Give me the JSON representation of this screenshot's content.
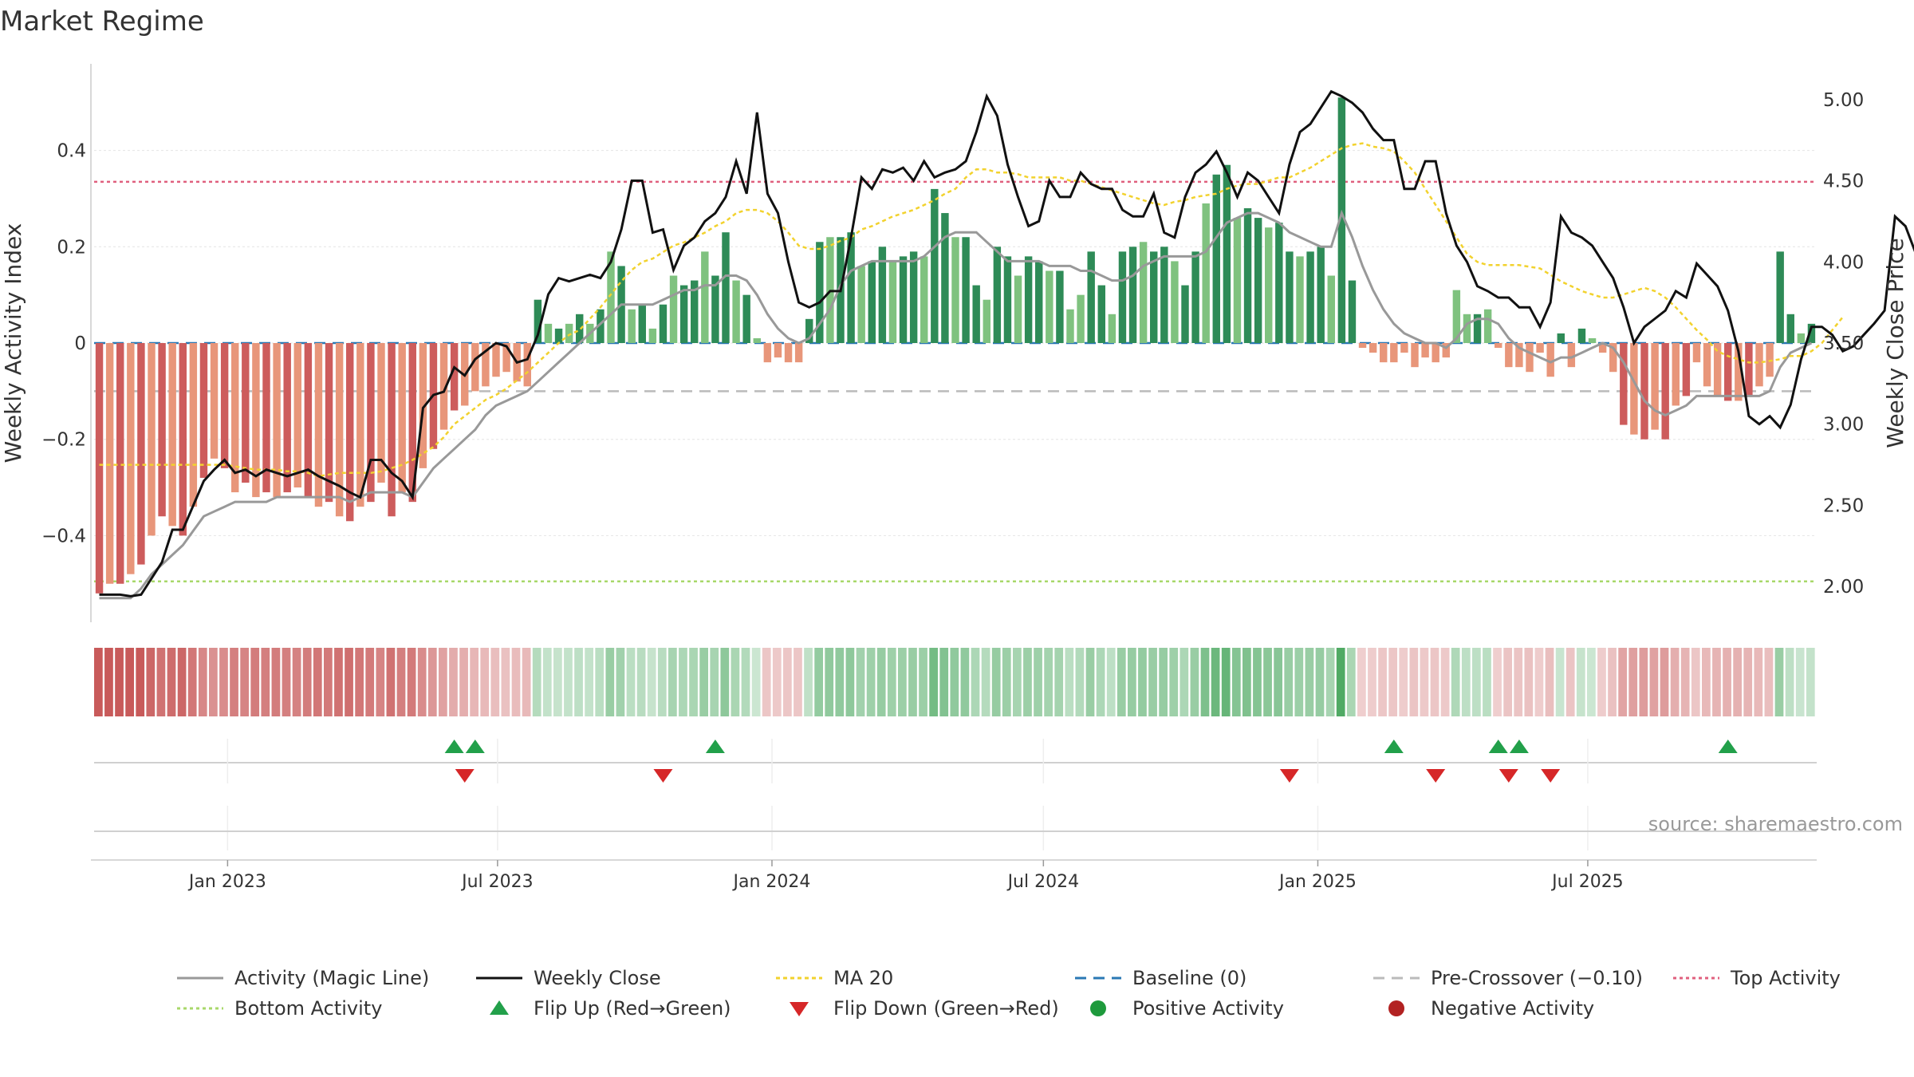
{
  "title": "Market Regime",
  "source": "source: sharemaestro.com",
  "colors": {
    "pos_dark": "#2e8b57",
    "pos_light": "#7fc27f",
    "neg_dark": "#cd5c5c",
    "neg_light": "#e8967a",
    "magic_line": "#999999",
    "close": "#111111",
    "ma20": "#f2d22e",
    "baseline": "#2a78b4",
    "pre_crossover": "#bbbbbb",
    "top_activity": "#e0607e",
    "bottom_activity": "#a8d86a",
    "flip_up": "#22a04a",
    "flip_down": "#d62728",
    "positive_dot": "#1e9a3c",
    "negative_dot": "#b22222"
  },
  "chart_data": {
    "type": "bar",
    "x_start": "2022-10-07",
    "x_step_days": 7,
    "x_ticks": [
      "Jan 2023",
      "Jul 2023",
      "Jan 2024",
      "Jul 2024",
      "Jan 2025",
      "Jul 2025"
    ],
    "x_tick_dates": [
      "2023-01-01",
      "2023-07-01",
      "2024-01-01",
      "2024-07-01",
      "2025-01-01",
      "2025-07-01"
    ],
    "left_axis": {
      "label": "Weekly Activity Index",
      "ylim": [
        -0.58,
        0.58
      ],
      "ticks": [
        0.4,
        0.2,
        0,
        -0.2,
        -0.4
      ],
      "tick_labels": [
        "0.4",
        "0.2",
        "0",
        "−0.2",
        "−0.4"
      ]
    },
    "right_axis": {
      "label": "Weekly Close Price",
      "ylim": [
        1.78,
        5.22
      ],
      "ticks": [
        5.0,
        4.5,
        4.0,
        3.5,
        3.0,
        2.5,
        2.0
      ],
      "tick_labels": [
        "5.00",
        "4.50",
        "4.00",
        "3.50",
        "3.00",
        "2.50",
        "2.00"
      ]
    },
    "activity": [
      -0.52,
      -0.5,
      -0.5,
      -0.48,
      -0.46,
      -0.4,
      -0.36,
      -0.38,
      -0.4,
      -0.34,
      -0.28,
      -0.24,
      -0.26,
      -0.31,
      -0.29,
      -0.32,
      -0.31,
      -0.32,
      -0.31,
      -0.3,
      -0.32,
      -0.34,
      -0.33,
      -0.36,
      -0.37,
      -0.34,
      -0.33,
      -0.29,
      -0.36,
      -0.31,
      -0.33,
      -0.26,
      -0.22,
      -0.18,
      -0.14,
      -0.13,
      -0.1,
      -0.09,
      -0.07,
      -0.06,
      -0.08,
      -0.09,
      0.09,
      0.04,
      0.03,
      0.04,
      0.06,
      0.04,
      0.07,
      0.19,
      0.16,
      0.07,
      0.08,
      0.03,
      0.08,
      0.14,
      0.12,
      0.13,
      0.19,
      0.14,
      0.23,
      0.13,
      0.1,
      0.01,
      -0.04,
      -0.03,
      -0.04,
      -0.04,
      0.05,
      0.21,
      0.22,
      0.22,
      0.23,
      0.16,
      0.17,
      0.2,
      0.17,
      0.18,
      0.19,
      0.18,
      0.32,
      0.27,
      0.22,
      0.22,
      0.12,
      0.09,
      0.2,
      0.18,
      0.14,
      0.18,
      0.17,
      0.15,
      0.15,
      0.07,
      0.1,
      0.19,
      0.12,
      0.06,
      0.19,
      0.2,
      0.21,
      0.19,
      0.2,
      0.17,
      0.12,
      0.19,
      0.29,
      0.35,
      0.37,
      0.26,
      0.28,
      0.26,
      0.24,
      0.25,
      0.19,
      0.18,
      0.19,
      0.2,
      0.14,
      0.51,
      0.13,
      -0.01,
      -0.02,
      -0.04,
      -0.04,
      -0.02,
      -0.05,
      -0.03,
      -0.04,
      -0.03,
      0.11,
      0.06,
      0.06,
      0.07,
      -0.01,
      -0.05,
      -0.05,
      -0.06,
      -0.02,
      -0.07,
      0.02,
      -0.05,
      0.03,
      0.01,
      -0.02,
      -0.06,
      -0.17,
      -0.19,
      -0.2,
      -0.18,
      -0.2,
      -0.13,
      -0.11,
      -0.04,
      -0.09,
      -0.11,
      -0.12,
      -0.12,
      -0.11,
      -0.09,
      -0.07,
      0.19,
      0.06,
      0.02,
      0.04
    ],
    "magic_line": [
      -0.53,
      -0.53,
      -0.53,
      -0.53,
      -0.51,
      -0.48,
      -0.46,
      -0.44,
      -0.42,
      -0.39,
      -0.36,
      -0.35,
      -0.34,
      -0.33,
      -0.33,
      -0.33,
      -0.33,
      -0.32,
      -0.32,
      -0.32,
      -0.32,
      -0.32,
      -0.32,
      -0.32,
      -0.33,
      -0.32,
      -0.31,
      -0.31,
      -0.31,
      -0.31,
      -0.32,
      -0.29,
      -0.26,
      -0.24,
      -0.22,
      -0.2,
      -0.18,
      -0.15,
      -0.13,
      -0.12,
      -0.11,
      -0.1,
      -0.08,
      -0.06,
      -0.04,
      -0.02,
      0.0,
      0.02,
      0.04,
      0.06,
      0.08,
      0.08,
      0.08,
      0.08,
      0.09,
      0.1,
      0.11,
      0.11,
      0.12,
      0.12,
      0.14,
      0.14,
      0.13,
      0.1,
      0.06,
      0.03,
      0.01,
      0.0,
      0.01,
      0.04,
      0.07,
      0.12,
      0.15,
      0.16,
      0.17,
      0.17,
      0.17,
      0.17,
      0.17,
      0.18,
      0.2,
      0.22,
      0.23,
      0.23,
      0.23,
      0.21,
      0.19,
      0.17,
      0.17,
      0.17,
      0.17,
      0.16,
      0.16,
      0.16,
      0.15,
      0.15,
      0.14,
      0.13,
      0.13,
      0.14,
      0.16,
      0.17,
      0.18,
      0.18,
      0.18,
      0.18,
      0.19,
      0.22,
      0.25,
      0.26,
      0.27,
      0.27,
      0.26,
      0.25,
      0.23,
      0.22,
      0.21,
      0.2,
      0.2,
      0.27,
      0.22,
      0.16,
      0.11,
      0.07,
      0.04,
      0.02,
      0.01,
      0.0,
      0.0,
      -0.01,
      0.01,
      0.04,
      0.05,
      0.05,
      0.04,
      0.01,
      -0.01,
      -0.02,
      -0.03,
      -0.04,
      -0.03,
      -0.03,
      -0.02,
      -0.01,
      0.0,
      -0.01,
      -0.04,
      -0.08,
      -0.12,
      -0.14,
      -0.15,
      -0.14,
      -0.13,
      -0.11,
      -0.11,
      -0.11,
      -0.11,
      -0.11,
      -0.11,
      -0.11,
      -0.1,
      -0.05,
      -0.02,
      -0.01,
      0.0
    ],
    "weekly_close": [
      1.95,
      1.95,
      1.95,
      1.94,
      1.95,
      2.05,
      2.15,
      2.35,
      2.35,
      2.5,
      2.65,
      2.72,
      2.78,
      2.7,
      2.72,
      2.68,
      2.72,
      2.7,
      2.68,
      2.7,
      2.72,
      2.68,
      2.65,
      2.62,
      2.58,
      2.55,
      2.78,
      2.78,
      2.7,
      2.65,
      2.55,
      3.1,
      3.18,
      3.2,
      3.35,
      3.3,
      3.4,
      3.45,
      3.5,
      3.48,
      3.38,
      3.4,
      3.55,
      3.8,
      3.9,
      3.88,
      3.9,
      3.92,
      3.9,
      4.0,
      4.2,
      4.5,
      4.5,
      4.18,
      4.2,
      3.95,
      4.1,
      4.15,
      4.25,
      4.3,
      4.4,
      4.62,
      4.42,
      4.92,
      4.42,
      4.3,
      4.0,
      3.75,
      3.72,
      3.75,
      3.82,
      3.82,
      4.15,
      4.52,
      4.45,
      4.57,
      4.55,
      4.58,
      4.5,
      4.62,
      4.52,
      4.55,
      4.57,
      4.62,
      4.8,
      5.02,
      4.9,
      4.6,
      4.4,
      4.22,
      4.25,
      4.5,
      4.4,
      4.4,
      4.55,
      4.48,
      4.45,
      4.45,
      4.32,
      4.28,
      4.28,
      4.42,
      4.18,
      4.15,
      4.4,
      4.55,
      4.6,
      4.68,
      4.55,
      4.4,
      4.55,
      4.5,
      4.4,
      4.3,
      4.6,
      4.8,
      4.85,
      4.95,
      5.05,
      5.02,
      4.98,
      4.92,
      4.82,
      4.75,
      4.75,
      4.45,
      4.45,
      4.62,
      4.62,
      4.3,
      4.1,
      4.0,
      3.85,
      3.82,
      3.78,
      3.78,
      3.72,
      3.72,
      3.6,
      3.75,
      4.28,
      4.18,
      4.15,
      4.1,
      4.0,
      3.9,
      3.72,
      3.5,
      3.6,
      3.65,
      3.7,
      3.82,
      3.78,
      3.99,
      3.92,
      3.85,
      3.7,
      3.45,
      3.05,
      3.0,
      3.05,
      2.98,
      3.12,
      3.4,
      3.6,
      3.6,
      3.55,
      3.45,
      3.48,
      3.55,
      3.62,
      3.7,
      4.28,
      4.22,
      4.05,
      4.12
    ],
    "ma20": [
      2.75,
      2.75,
      2.75,
      2.75,
      2.75,
      2.75,
      2.75,
      2.75,
      2.75,
      2.75,
      2.75,
      2.75,
      2.75,
      2.74,
      2.73,
      2.72,
      2.72,
      2.72,
      2.71,
      2.71,
      2.7,
      2.68,
      2.69,
      2.7,
      2.7,
      2.7,
      2.7,
      2.71,
      2.73,
      2.75,
      2.78,
      2.82,
      2.86,
      2.92,
      3.0,
      3.05,
      3.1,
      3.15,
      3.18,
      3.22,
      3.27,
      3.32,
      3.38,
      3.44,
      3.5,
      3.55,
      3.58,
      3.65,
      3.72,
      3.8,
      3.88,
      3.95,
      4.0,
      4.02,
      4.06,
      4.1,
      4.12,
      4.15,
      4.18,
      4.22,
      4.25,
      4.3,
      4.32,
      4.32,
      4.3,
      4.25,
      4.18,
      4.1,
      4.08,
      4.08,
      4.1,
      4.13,
      4.15,
      4.2,
      4.22,
      4.25,
      4.28,
      4.3,
      4.32,
      4.35,
      4.38,
      4.42,
      4.45,
      4.52,
      4.57,
      4.57,
      4.55,
      4.55,
      4.54,
      4.52,
      4.52,
      4.52,
      4.52,
      4.5,
      4.5,
      4.48,
      4.46,
      4.44,
      4.42,
      4.4,
      4.38,
      4.36,
      4.35,
      4.37,
      4.38,
      4.4,
      4.41,
      4.42,
      4.45,
      4.47,
      4.48,
      4.48,
      4.5,
      4.52,
      4.52,
      4.55,
      4.58,
      4.62,
      4.66,
      4.7,
      4.72,
      4.73,
      4.71,
      4.7,
      4.68,
      4.62,
      4.55,
      4.45,
      4.35,
      4.25,
      4.15,
      4.05,
      4.0,
      3.98,
      3.98,
      3.98,
      3.98,
      3.97,
      3.96,
      3.92,
      3.88,
      3.85,
      3.82,
      3.8,
      3.78,
      3.78,
      3.8,
      3.82,
      3.84,
      3.82,
      3.78,
      3.72,
      3.65,
      3.58,
      3.52,
      3.45,
      3.42,
      3.4,
      3.38,
      3.38,
      3.39,
      3.4,
      3.42,
      3.42,
      3.45,
      3.5,
      3.58,
      3.66
    ],
    "baseline": 0,
    "pre_crossover": -0.1,
    "top_activity": 0.335,
    "bottom_activity": -0.495,
    "flip_up_dates": [
      "2023-06-02",
      "2023-06-16",
      "2023-11-24",
      "2025-02-21",
      "2025-05-02",
      "2025-05-16",
      "2025-10-03"
    ],
    "flip_down_dates": [
      "2023-06-09",
      "2023-10-20",
      "2024-12-13",
      "2025-03-21",
      "2025-05-09",
      "2025-06-06"
    ]
  },
  "legend": [
    {
      "key": "magic",
      "label": "Activity (Magic Line)"
    },
    {
      "key": "close",
      "label": "Weekly Close"
    },
    {
      "key": "ma20",
      "label": "MA 20"
    },
    {
      "key": "baseline",
      "label": "Baseline (0)"
    },
    {
      "key": "pre",
      "label": "Pre-Crossover (−0.10)"
    },
    {
      "key": "top",
      "label": "Top Activity"
    },
    {
      "key": "bottom",
      "label": "Bottom Activity"
    },
    {
      "key": "flipup",
      "label": "Flip Up (Red→Green)"
    },
    {
      "key": "flipdown",
      "label": "Flip Down (Green→Red)"
    },
    {
      "key": "posdot",
      "label": "Positive Activity"
    },
    {
      "key": "negdot",
      "label": "Negative Activity"
    }
  ]
}
